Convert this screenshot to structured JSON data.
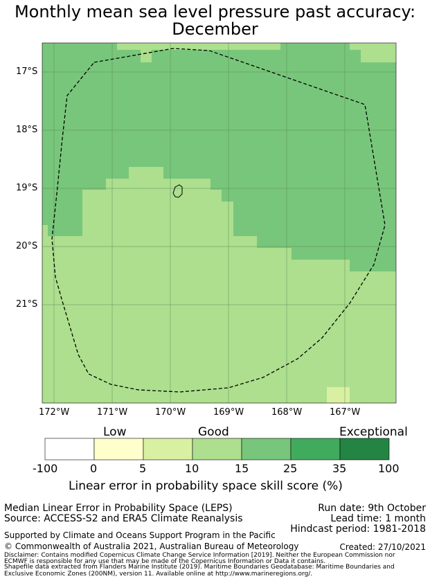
{
  "title": {
    "line1": "Monthly mean sea level pressure past accuracy:",
    "line2": "December"
  },
  "map": {
    "lat_labels": [
      "17°S",
      "18°S",
      "19°S",
      "20°S",
      "21°S"
    ],
    "lon_labels": [
      "172°W",
      "171°W",
      "170°W",
      "169°W",
      "168°W",
      "167°W"
    ],
    "colors": {
      "light_green": "#addf8e",
      "mid_green": "#78c67b",
      "pale_yellow": "#d9f0a3",
      "coast": "#000000",
      "grid": "#5a8a5a"
    }
  },
  "colorbar": {
    "category_labels": {
      "low": "Low",
      "good": "Good",
      "exceptional": "Exceptional"
    },
    "ticks": [
      "-100",
      "0",
      "5",
      "10",
      "15",
      "25",
      "35",
      "100"
    ],
    "colors": [
      "#ffffff",
      "#ffffcc",
      "#d9f0a3",
      "#addf8e",
      "#78c67b",
      "#41ab5d",
      "#238443"
    ],
    "label": "Linear error in probability space skill score (%)"
  },
  "footer": {
    "method": "Median Linear Error in Probability Space (LEPS)",
    "source": "Source: ACCESS-S2 and ERA5 Climate Reanalysis",
    "run_date": "Run date: 9th October",
    "lead_time": "Lead time: 1 month",
    "hindcast": "Hindcast period: 1981-2018",
    "support": "Supported by Climate and Oceans Support Program in the Pacific",
    "copyright": "© Commonwealth of Australia 2021, Australian Bureau of Meteorology",
    "created": "Created: 27/10/2021",
    "disclaimer1": "Disclaimer: Contains modified Copernicus Climate Change Service Information [2019]. Neither the European Commission nor",
    "disclaimer2": "ECMWF is responsible for any use that may be made of the Copernicus Information or Data it contains.",
    "shapefile1": "Shapefile data extracted from Flanders Marine Institute (2019). Maritime Boundaries Geodatabase: Maritime Boundaries and",
    "shapefile2": "Exclusive Economic Zones (200NM), version 11. Available online at http://www.marineregions.org/."
  }
}
